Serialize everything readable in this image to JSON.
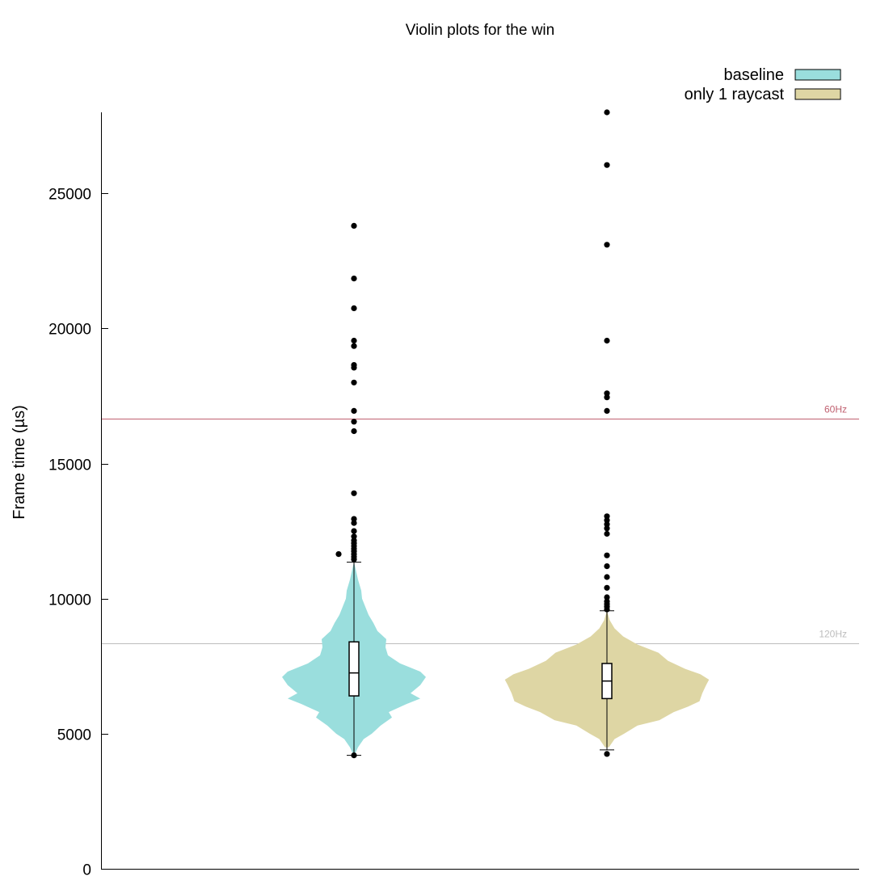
{
  "chart_data": {
    "type": "violin",
    "title": "Violin plots for the win",
    "xlabel": "",
    "ylabel": "Frame time (µs)",
    "ylim": [
      0,
      28000
    ],
    "yticks": [
      0,
      5000,
      10000,
      15000,
      20000,
      25000
    ],
    "grid": false,
    "legend_position": "top-right",
    "reference_lines": [
      {
        "label": "60Hz",
        "value": 16667,
        "color": "#c06070"
      },
      {
        "label": "120Hz",
        "value": 8333,
        "color": "#bdbdbd"
      }
    ],
    "series": [
      {
        "name": "baseline",
        "color": "#9adedd",
        "box": {
          "whisker_low": 4200,
          "q1": 6400,
          "median": 7250,
          "q3": 8400,
          "whisker_high": 11350
        },
        "density": [
          [
            4300,
            0.02
          ],
          [
            4500,
            0.05
          ],
          [
            4800,
            0.12
          ],
          [
            5000,
            0.22
          ],
          [
            5300,
            0.33
          ],
          [
            5600,
            0.47
          ],
          [
            5800,
            0.43
          ],
          [
            6100,
            0.65
          ],
          [
            6300,
            0.82
          ],
          [
            6500,
            0.7
          ],
          [
            6800,
            0.82
          ],
          [
            7100,
            0.89
          ],
          [
            7300,
            0.82
          ],
          [
            7600,
            0.57
          ],
          [
            7900,
            0.42
          ],
          [
            8200,
            0.39
          ],
          [
            8500,
            0.4
          ],
          [
            8800,
            0.29
          ],
          [
            9100,
            0.24
          ],
          [
            9400,
            0.18
          ],
          [
            9700,
            0.14
          ],
          [
            10000,
            0.1
          ],
          [
            10300,
            0.09
          ],
          [
            10700,
            0.05
          ],
          [
            11100,
            0.02
          ],
          [
            11350,
            0.0
          ]
        ],
        "outliers": [
          4200,
          11650,
          11450,
          11550,
          11650,
          11750,
          11850,
          11950,
          12050,
          12150,
          12300,
          12500,
          12800,
          12950,
          13900,
          16200,
          16550,
          16950,
          18000,
          18550,
          18650,
          19350,
          19550,
          20750,
          21850,
          23800
        ]
      },
      {
        "name": "only 1 raycast",
        "color": "#ded6a4",
        "box": {
          "whisker_low": 4400,
          "q1": 6300,
          "median": 6950,
          "q3": 7600,
          "whisker_high": 9550
        },
        "density": [
          [
            4500,
            0.02
          ],
          [
            4800,
            0.08
          ],
          [
            5000,
            0.18
          ],
          [
            5300,
            0.32
          ],
          [
            5500,
            0.55
          ],
          [
            5800,
            0.7
          ],
          [
            6000,
            0.85
          ],
          [
            6200,
            0.97
          ],
          [
            6500,
            1.0
          ],
          [
            6800,
            1.04
          ],
          [
            7000,
            1.07
          ],
          [
            7200,
            0.98
          ],
          [
            7400,
            0.82
          ],
          [
            7700,
            0.64
          ],
          [
            8000,
            0.54
          ],
          [
            8300,
            0.32
          ],
          [
            8600,
            0.17
          ],
          [
            8900,
            0.08
          ],
          [
            9200,
            0.03
          ],
          [
            9550,
            0.0
          ]
        ],
        "outliers": [
          4250,
          9600,
          9700,
          9800,
          9900,
          10050,
          10400,
          10800,
          11200,
          11600,
          12400,
          12600,
          12750,
          12900,
          13050,
          16950,
          17450,
          17600,
          19550,
          23100,
          26050,
          28000
        ]
      }
    ]
  }
}
